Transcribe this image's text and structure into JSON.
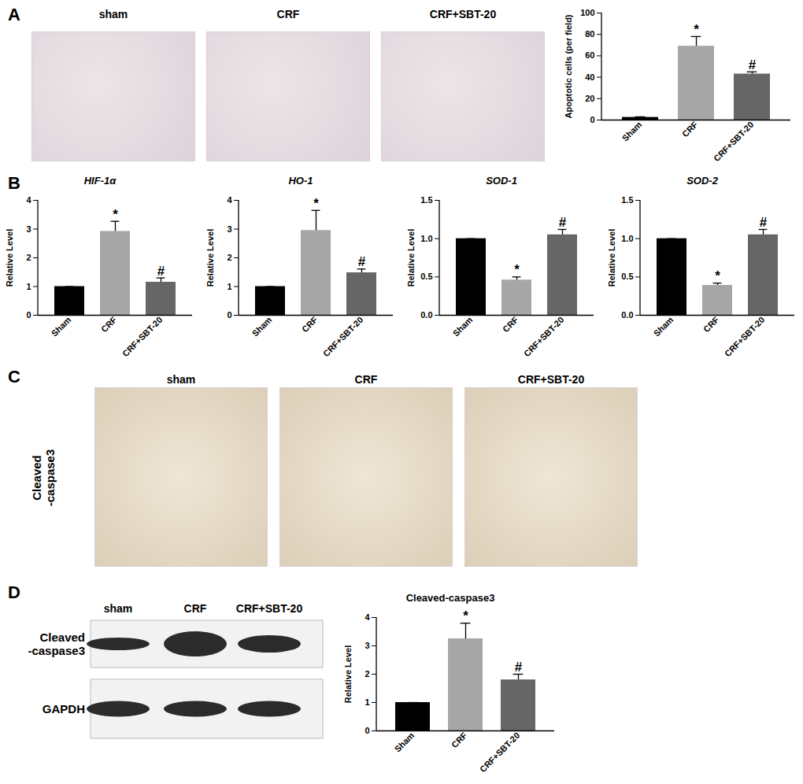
{
  "figure": {
    "letters": [
      "A",
      "B",
      "C",
      "D"
    ],
    "panel_a_images": [
      "sham",
      "CRF",
      "CRF+SBT-20"
    ],
    "panel_c_images": [
      "sham",
      "CRF",
      "CRF+SBT-20"
    ],
    "panel_c_row_label": [
      "Cleaved",
      "-caspase3"
    ],
    "panel_d_lanes": [
      "sham",
      "CRF",
      "CRF+SBT-20"
    ],
    "panel_d_rows": [
      [
        "Cleaved",
        "-caspase3"
      ],
      [
        "GAPDH"
      ]
    ]
  },
  "chart_data": [
    {
      "type": "bar",
      "y_label": "Apoptotic cells (per field)",
      "categories": [
        "Sham",
        "CRF",
        "CRF+SBT-20"
      ],
      "values": [
        2.5,
        69,
        43
      ],
      "errors": [
        0.5,
        9,
        2
      ],
      "colors": [
        "#000000",
        "#a6a6a6",
        "#666666"
      ],
      "ylim": [
        0,
        100
      ],
      "yticks": [
        0,
        20,
        40,
        60,
        80,
        100
      ],
      "annotations": [
        {
          "category": "CRF",
          "text": "*"
        },
        {
          "category": "CRF+SBT-20",
          "text": "#"
        }
      ]
    },
    {
      "type": "bar",
      "title": "HIF-1α",
      "y_label": "Relative Level",
      "categories": [
        "Sham",
        "CRF",
        "CRF+SBT-20"
      ],
      "values": [
        1,
        2.92,
        1.15
      ],
      "errors": [
        0,
        0.35,
        0.15
      ],
      "colors": [
        "#000000",
        "#a6a6a6",
        "#666666"
      ],
      "ylim": [
        0,
        4
      ],
      "yticks": [
        0,
        1,
        2,
        3,
        4
      ],
      "annotations": [
        {
          "category": "CRF",
          "text": "*"
        },
        {
          "category": "CRF+SBT-20",
          "text": "#"
        }
      ]
    },
    {
      "type": "bar",
      "title": "HO-1",
      "y_label": "Relative Level",
      "categories": [
        "Sham",
        "CRF",
        "CRF+SBT-20"
      ],
      "values": [
        1,
        2.95,
        1.48
      ],
      "errors": [
        0,
        0.7,
        0.13
      ],
      "colors": [
        "#000000",
        "#a6a6a6",
        "#666666"
      ],
      "ylim": [
        0,
        4
      ],
      "yticks": [
        0,
        1,
        2,
        3,
        4
      ],
      "annotations": [
        {
          "category": "CRF",
          "text": "*"
        },
        {
          "category": "CRF+SBT-20",
          "text": "#"
        }
      ]
    },
    {
      "type": "bar",
      "title": "SOD-1",
      "y_label": "Relative Level",
      "categories": [
        "Sham",
        "CRF",
        "CRF+SBT-20"
      ],
      "values": [
        1,
        0.46,
        1.05
      ],
      "errors": [
        0,
        0.04,
        0.07
      ],
      "colors": [
        "#000000",
        "#a6a6a6",
        "#666666"
      ],
      "ylim": [
        0,
        1.5
      ],
      "yticks": [
        {
          "value": 0,
          "label": "0.0"
        },
        {
          "value": 0.5,
          "label": "0.5"
        },
        {
          "value": 1,
          "label": "1.0"
        },
        {
          "value": 1.5,
          "label": "1.5"
        }
      ],
      "annotations": [
        {
          "category": "CRF",
          "text": "*"
        },
        {
          "category": "CRF+SBT-20",
          "text": "#"
        }
      ]
    },
    {
      "type": "bar",
      "title": "SOD-2",
      "y_label": "Relative Level",
      "categories": [
        "Sham",
        "CRF",
        "CRF+SBT-20"
      ],
      "values": [
        1,
        0.39,
        1.05
      ],
      "errors": [
        0,
        0.03,
        0.07
      ],
      "colors": [
        "#000000",
        "#a6a6a6",
        "#666666"
      ],
      "ylim": [
        0,
        1.5
      ],
      "yticks": [
        {
          "value": 0,
          "label": "0.0"
        },
        {
          "value": 0.5,
          "label": "0.5"
        },
        {
          "value": 1,
          "label": "1.0"
        },
        {
          "value": 1.5,
          "label": "1.5"
        }
      ],
      "annotations": [
        {
          "category": "CRF",
          "text": "*"
        },
        {
          "category": "CRF+SBT-20",
          "text": "#"
        }
      ]
    },
    {
      "type": "bar",
      "title": "Cleaved-caspase3",
      "y_label": "Relative Level",
      "categories": [
        "Sham",
        "CRF",
        "CRF+SBT-20"
      ],
      "values": [
        1,
        3.25,
        1.8
      ],
      "errors": [
        0,
        0.55,
        0.2
      ],
      "colors": [
        "#000000",
        "#a6a6a6",
        "#666666"
      ],
      "ylim": [
        0,
        4
      ],
      "yticks": [
        0,
        1,
        2,
        3,
        4
      ],
      "annotations": [
        {
          "category": "CRF",
          "text": "*"
        },
        {
          "category": "CRF+SBT-20",
          "text": "#"
        }
      ]
    }
  ]
}
